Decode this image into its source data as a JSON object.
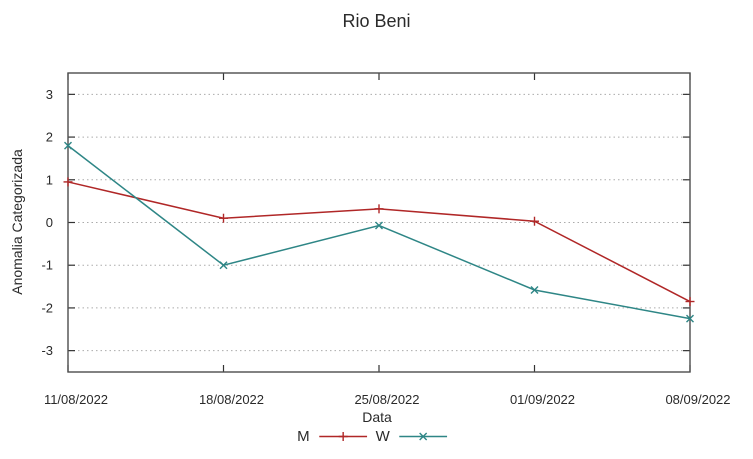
{
  "chart_data": {
    "type": "line",
    "title": "Rio Beni",
    "xlabel": "Data",
    "ylabel": "Anomalia Categorizada",
    "categories": [
      "11/08/2022",
      "18/08/2022",
      "25/08/2022",
      "01/09/2022",
      "08/09/2022"
    ],
    "series": [
      {
        "name": "M",
        "color": "#b02727",
        "marker": "plus",
        "values": [
          0.95,
          0.1,
          0.32,
          0.03,
          -1.85
        ]
      },
      {
        "name": "W",
        "color": "#2e8686",
        "marker": "cross",
        "values": [
          1.8,
          -1.0,
          -0.07,
          -1.58,
          -2.25
        ]
      }
    ],
    "yticks": [
      -3,
      -2,
      -1,
      0,
      1,
      2,
      3
    ],
    "ylim": [
      -3.5,
      3.5
    ],
    "grid": "horizontal-dotted",
    "legend_position": "bottom-center"
  }
}
